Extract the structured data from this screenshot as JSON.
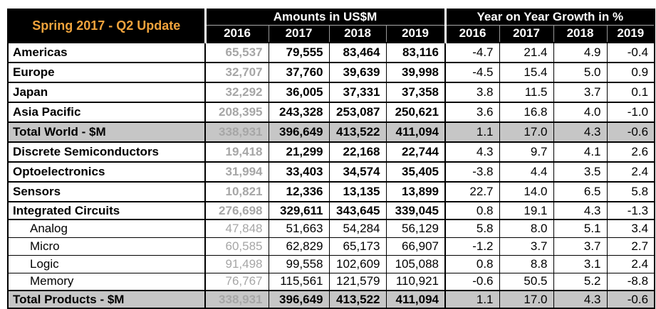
{
  "header": {
    "title": "Spring 2017 - Q2 Update",
    "amounts_label": "Amounts in US$M",
    "growth_label": "Year on Year Growth in %",
    "years": [
      "2016",
      "2017",
      "2018",
      "2019"
    ]
  },
  "colors": {
    "title_orange": "#F0A33C",
    "header_bg": "#000000",
    "total_row_bg": "#C6C6C6",
    "muted_2016_text": "#A6A6A6"
  },
  "rows": [
    {
      "label": "Americas",
      "style": "main",
      "amounts": [
        "65,537",
        "79,555",
        "83,464",
        "83,116"
      ],
      "growth": [
        "-4.7",
        "21.4",
        "4.9",
        "-0.4"
      ]
    },
    {
      "label": "Europe",
      "style": "main",
      "amounts": [
        "32,707",
        "37,760",
        "39,639",
        "39,998"
      ],
      "growth": [
        "-4.5",
        "15.4",
        "5.0",
        "0.9"
      ]
    },
    {
      "label": "Japan",
      "style": "main",
      "amounts": [
        "32,292",
        "36,005",
        "37,331",
        "37,358"
      ],
      "growth": [
        "3.8",
        "11.5",
        "3.7",
        "0.1"
      ]
    },
    {
      "label": "Asia Pacific",
      "style": "main",
      "amounts": [
        "208,395",
        "243,328",
        "253,087",
        "250,621"
      ],
      "growth": [
        "3.6",
        "16.8",
        "4.0",
        "-1.0"
      ]
    },
    {
      "label": "Total World - $M",
      "style": "total",
      "amounts": [
        "338,931",
        "396,649",
        "413,522",
        "411,094"
      ],
      "growth": [
        "1.1",
        "17.0",
        "4.3",
        "-0.6"
      ]
    },
    {
      "label": "Discrete Semiconductors",
      "style": "main",
      "amounts": [
        "19,418",
        "21,299",
        "22,168",
        "22,744"
      ],
      "growth": [
        "4.3",
        "9.7",
        "4.1",
        "2.6"
      ]
    },
    {
      "label": "Optoelectronics",
      "style": "main",
      "amounts": [
        "31,994",
        "33,403",
        "34,574",
        "35,405"
      ],
      "growth": [
        "-3.8",
        "4.4",
        "3.5",
        "2.4"
      ]
    },
    {
      "label": "Sensors",
      "style": "main",
      "amounts": [
        "10,821",
        "12,336",
        "13,135",
        "13,899"
      ],
      "growth": [
        "22.7",
        "14.0",
        "6.5",
        "5.8"
      ]
    },
    {
      "label": "Integrated Circuits",
      "style": "main",
      "amounts": [
        "276,698",
        "329,611",
        "343,645",
        "339,045"
      ],
      "growth": [
        "0.8",
        "19.1",
        "4.3",
        "-1.3"
      ]
    },
    {
      "label": "Analog",
      "style": "sub",
      "amounts": [
        "47,848",
        "51,663",
        "54,284",
        "56,129"
      ],
      "growth": [
        "5.8",
        "8.0",
        "5.1",
        "3.4"
      ]
    },
    {
      "label": "Micro",
      "style": "sub",
      "amounts": [
        "60,585",
        "62,829",
        "65,173",
        "66,907"
      ],
      "growth": [
        "-1.2",
        "3.7",
        "3.7",
        "2.7"
      ]
    },
    {
      "label": "Logic",
      "style": "sub",
      "amounts": [
        "91,498",
        "99,558",
        "102,609",
        "105,088"
      ],
      "growth": [
        "0.8",
        "8.8",
        "3.1",
        "2.4"
      ]
    },
    {
      "label": "Memory",
      "style": "sub",
      "amounts": [
        "76,767",
        "115,561",
        "121,579",
        "110,921"
      ],
      "growth": [
        "-0.6",
        "50.5",
        "5.2",
        "-8.8"
      ]
    },
    {
      "label": "Total Products - $M",
      "style": "total",
      "amounts": [
        "338,931",
        "396,649",
        "413,522",
        "411,094"
      ],
      "growth": [
        "1.1",
        "17.0",
        "4.3",
        "-0.6"
      ]
    }
  ]
}
